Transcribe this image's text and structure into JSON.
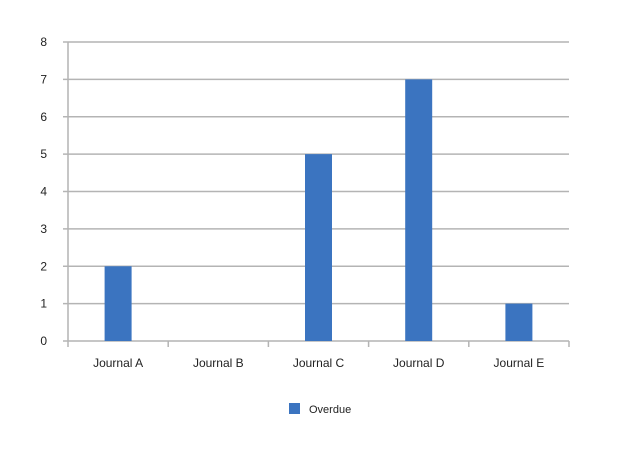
{
  "chart_data": {
    "type": "bar",
    "title": "",
    "xlabel": "",
    "ylabel": "",
    "categories": [
      "Journal A",
      "Journal B",
      "Journal C",
      "Journal D",
      "Journal E"
    ],
    "series": [
      {
        "name": "Overdue",
        "values": [
          2,
          0,
          5,
          7,
          1
        ],
        "color": "#3b74c0"
      }
    ],
    "ylim": [
      0,
      8
    ],
    "yticks": [
      0,
      1,
      2,
      3,
      4,
      5,
      6,
      7,
      8
    ],
    "grid": true,
    "grid_color": "#b4b4b4",
    "legend_position": "bottom"
  }
}
